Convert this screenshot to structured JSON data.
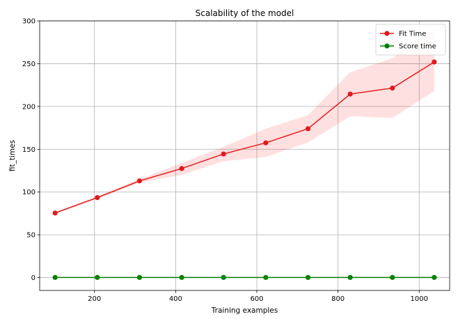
{
  "chart_data": {
    "type": "line",
    "title": "Scalability of the model",
    "xlabel": "Training examples",
    "ylabel": "fit_times",
    "xlim": [
      65,
      1075
    ],
    "ylim": [
      -15,
      300
    ],
    "xticks": [
      200,
      400,
      600,
      800,
      1000
    ],
    "yticks": [
      0,
      50,
      100,
      150,
      200,
      250,
      300
    ],
    "grid": true,
    "legend_position": "top-right",
    "x": [
      103,
      207,
      311,
      415,
      518,
      622,
      726,
      830,
      934,
      1037
    ],
    "series": [
      {
        "name": "Fit Time",
        "color": "#e31a1c",
        "band_color": "#ff0000",
        "values": [
          75.5,
          93.5,
          113,
          127.5,
          144.5,
          157.5,
          174,
          214.5,
          221.5,
          252
        ],
        "lower": [
          74,
          92,
          111,
          120,
          136,
          141,
          158,
          188.5,
          186.5,
          218
        ],
        "upper": [
          77,
          95,
          115,
          134,
          153,
          174,
          190,
          240,
          256.5,
          290
        ]
      },
      {
        "name": "Score time",
        "color": "#008000",
        "values": [
          0.2,
          0.2,
          0.2,
          0.2,
          0.2,
          0.2,
          0.2,
          0.2,
          0.2,
          0.2
        ],
        "lower": [
          0,
          0,
          0,
          0,
          0,
          0,
          0,
          0,
          0,
          0
        ],
        "upper": [
          0.4,
          0.4,
          0.4,
          0.4,
          0.4,
          0.4,
          0.4,
          0.4,
          0.4,
          0.4
        ]
      }
    ]
  }
}
